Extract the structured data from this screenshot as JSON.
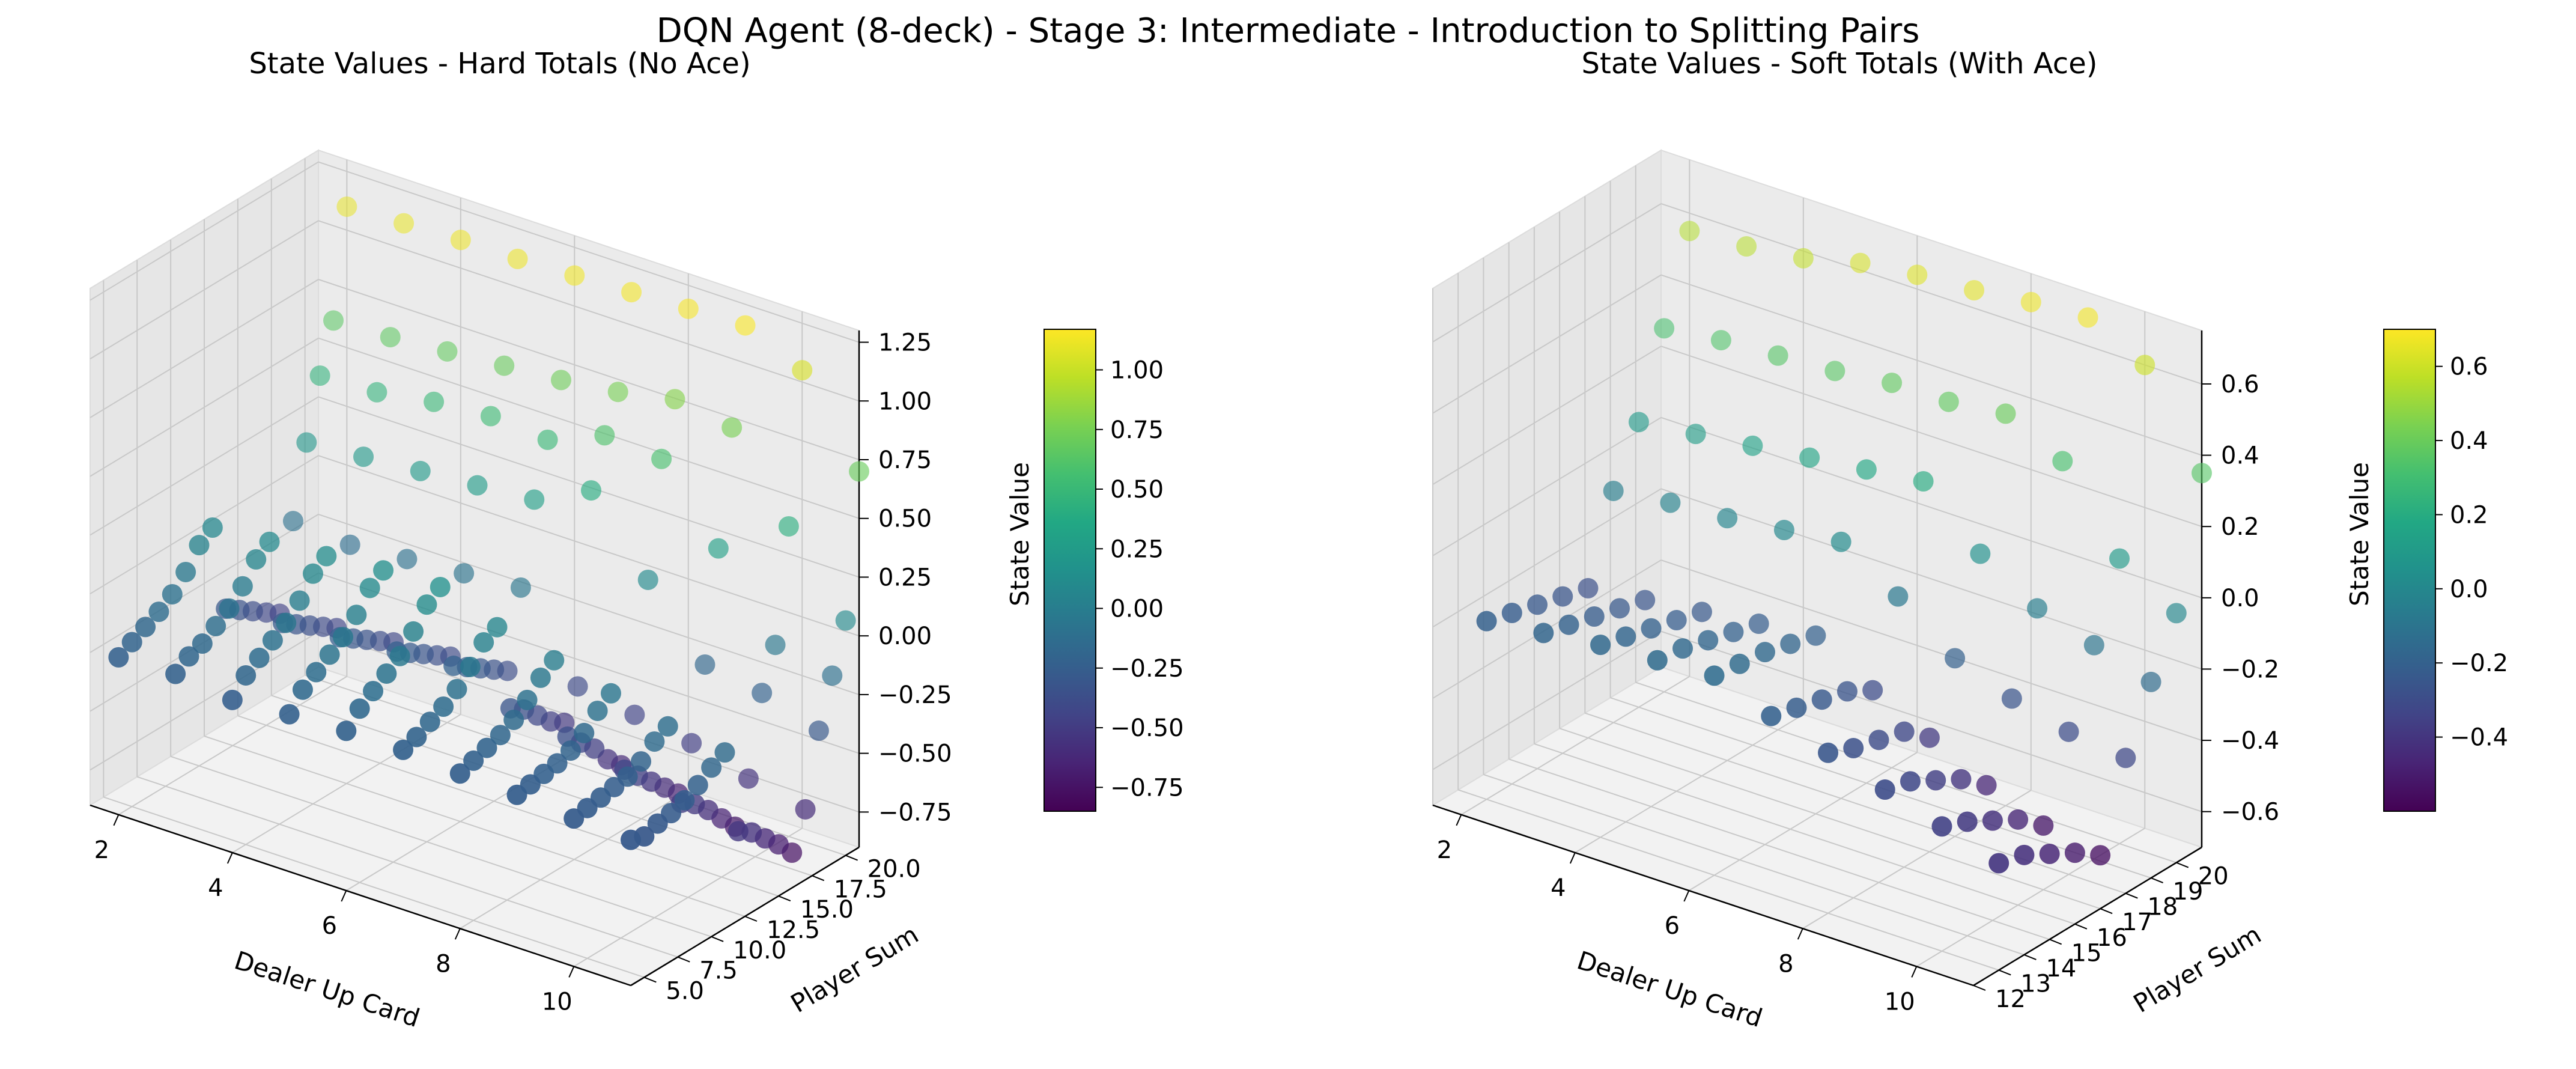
{
  "suptitle": "DQN Agent (8-deck) - Stage 3: Intermediate - Introduction to Splitting Pairs",
  "chart_data": [
    {
      "type": "scatter3d",
      "title": "State Values - Hard Totals (No Ace)",
      "xlabel": "Dealer Up Card",
      "ylabel": "Player Sum",
      "zlabel": "State Value",
      "x_ticks": [
        2,
        4,
        6,
        8,
        10
      ],
      "y_ticks": [
        "5.0",
        "7.5",
        "10.0",
        "12.5",
        "15.0",
        "17.5",
        "20.0"
      ],
      "z_ticks": [
        "−0.75",
        "−0.50",
        "−0.25",
        "0.00",
        "0.25",
        "0.50",
        "0.75",
        "1.00",
        "1.25"
      ],
      "colorbar_ticks": [
        "−0.75",
        "−0.50",
        "−0.25",
        "0.00",
        "0.25",
        "0.50",
        "0.75",
        "1.00"
      ],
      "colorbar_label": "State Value",
      "colormap": "viridis",
      "xlim": [
        1.5,
        11
      ],
      "ylim": [
        4,
        21
      ],
      "zlim": [
        -0.9,
        1.3
      ],
      "clim": [
        -0.85,
        1.17
      ],
      "dealer": [
        2,
        3,
        4,
        5,
        6,
        7,
        8,
        9,
        10,
        11
      ],
      "player_sum": [
        4,
        5,
        6,
        7,
        8,
        9,
        10,
        11,
        12,
        13,
        14,
        15,
        16,
        17,
        18,
        19,
        20,
        21
      ],
      "values": [
        [
          -0.23,
          -0.22,
          -0.25,
          -0.23,
          -0.22,
          -0.22,
          -0.24,
          -0.25,
          -0.27,
          -0.28
        ],
        [
          -0.2,
          -0.18,
          -0.18,
          -0.16,
          -0.16,
          -0.2,
          -0.22,
          -0.24,
          -0.26,
          -0.3
        ],
        [
          -0.17,
          -0.16,
          -0.14,
          -0.12,
          -0.12,
          -0.17,
          -0.2,
          -0.23,
          -0.25,
          -0.28
        ],
        [
          -0.14,
          -0.12,
          -0.1,
          -0.08,
          -0.08,
          -0.14,
          -0.18,
          -0.22,
          -0.24,
          -0.27
        ],
        [
          -0.1,
          -0.08,
          -0.06,
          -0.04,
          -0.04,
          -0.1,
          -0.15,
          -0.2,
          -0.23,
          -0.25
        ],
        [
          -0.04,
          -0.02,
          0.0,
          0.02,
          0.03,
          -0.04,
          -0.1,
          -0.16,
          -0.2,
          -0.22
        ],
        [
          0.04,
          0.06,
          0.08,
          0.1,
          0.11,
          0.03,
          -0.04,
          -0.1,
          -0.15,
          -0.18
        ],
        [
          0.08,
          0.1,
          0.12,
          0.14,
          0.15,
          0.06,
          0.0,
          -0.06,
          -0.12,
          -0.15
        ],
        [
          -0.3,
          -0.28,
          -0.26,
          -0.24,
          -0.22,
          -0.32,
          -0.36,
          -0.42,
          -0.48,
          -0.52
        ],
        [
          -0.34,
          -0.32,
          -0.3,
          -0.28,
          -0.26,
          -0.36,
          -0.42,
          -0.48,
          -0.52,
          -0.56
        ],
        [
          -0.38,
          -0.36,
          -0.34,
          -0.32,
          -0.3,
          -0.42,
          -0.48,
          -0.54,
          -0.58,
          -0.62
        ],
        [
          -0.42,
          -0.4,
          -0.38,
          -0.36,
          -0.34,
          -0.48,
          -0.56,
          -0.6,
          -0.65,
          -0.68
        ],
        [
          -0.46,
          -0.44,
          -0.42,
          -0.4,
          -0.38,
          -0.52,
          -0.62,
          -0.66,
          -0.72,
          -0.75
        ],
        [
          -0.1,
          -0.12,
          -0.1,
          -0.08,
          -0.06,
          -0.4,
          -0.44,
          -0.48,
          -0.55,
          -0.6
        ],
        [
          0.2,
          0.22,
          0.24,
          0.26,
          0.28,
          0.4,
          0.1,
          -0.18,
          -0.22,
          -0.3
        ],
        [
          0.45,
          0.46,
          0.5,
          0.52,
          0.5,
          0.6,
          0.58,
          0.28,
          -0.05,
          -0.1
        ],
        [
          0.65,
          0.66,
          0.68,
          0.7,
          0.72,
          0.75,
          0.8,
          0.76,
          0.42,
          0.1
        ],
        [
          1.1,
          1.11,
          1.12,
          1.12,
          1.13,
          1.14,
          1.15,
          1.16,
          1.05,
          0.7
        ]
      ]
    },
    {
      "type": "scatter3d",
      "title": "State Values - Soft Totals (With Ace)",
      "xlabel": "Dealer Up Card",
      "ylabel": "Player Sum",
      "zlabel": "State Value",
      "x_ticks": [
        2,
        4,
        6,
        8,
        10
      ],
      "y_ticks": [
        "12",
        "13",
        "14",
        "15",
        "16",
        "17",
        "18",
        "19",
        "20"
      ],
      "z_ticks": [
        "−0.6",
        "−0.4",
        "−0.2",
        "0.0",
        "0.2",
        "0.4",
        "0.6"
      ],
      "colorbar_ticks": [
        "−0.4",
        "−0.2",
        "0.0",
        "0.2",
        "0.4",
        "0.6"
      ],
      "colorbar_label": "State Value",
      "colormap": "viridis",
      "xlim": [
        1.5,
        11
      ],
      "ylim": [
        12,
        21
      ],
      "zlim": [
        -0.7,
        0.75
      ],
      "clim": [
        -0.6,
        0.7
      ],
      "dealer": [
        2,
        3,
        4,
        5,
        6,
        7,
        8,
        9,
        10,
        11
      ],
      "player_sum": [
        13,
        14,
        15,
        16,
        17,
        18,
        19,
        20,
        21
      ],
      "values": [
        [
          -0.2,
          -0.18,
          -0.16,
          -0.15,
          -0.14,
          -0.2,
          -0.25,
          -0.3,
          -0.35,
          -0.4
        ],
        [
          -0.22,
          -0.2,
          -0.18,
          -0.16,
          -0.15,
          -0.22,
          -0.28,
          -0.32,
          -0.38,
          -0.42
        ],
        [
          -0.24,
          -0.22,
          -0.2,
          -0.18,
          -0.16,
          -0.24,
          -0.3,
          -0.36,
          -0.42,
          -0.46
        ],
        [
          -0.26,
          -0.24,
          -0.22,
          -0.2,
          -0.18,
          -0.26,
          -0.32,
          -0.4,
          -0.46,
          -0.5
        ],
        [
          -0.28,
          -0.26,
          -0.24,
          -0.22,
          -0.2,
          -0.3,
          -0.38,
          -0.46,
          -0.52,
          -0.55
        ],
        [
          -0.05,
          -0.03,
          -0.02,
          0.0,
          0.02,
          -0.08,
          -0.2,
          -0.26,
          -0.3,
          -0.32
        ],
        [
          0.1,
          0.12,
          0.14,
          0.16,
          0.18,
          0.2,
          0.05,
          -0.05,
          -0.1,
          -0.15
        ],
        [
          0.32,
          0.34,
          0.35,
          0.36,
          0.38,
          0.38,
          0.4,
          0.32,
          0.1,
          0.0
        ],
        [
          0.55,
          0.56,
          0.58,
          0.62,
          0.64,
          0.65,
          0.67,
          0.68,
          0.6,
          0.35
        ]
      ]
    }
  ]
}
